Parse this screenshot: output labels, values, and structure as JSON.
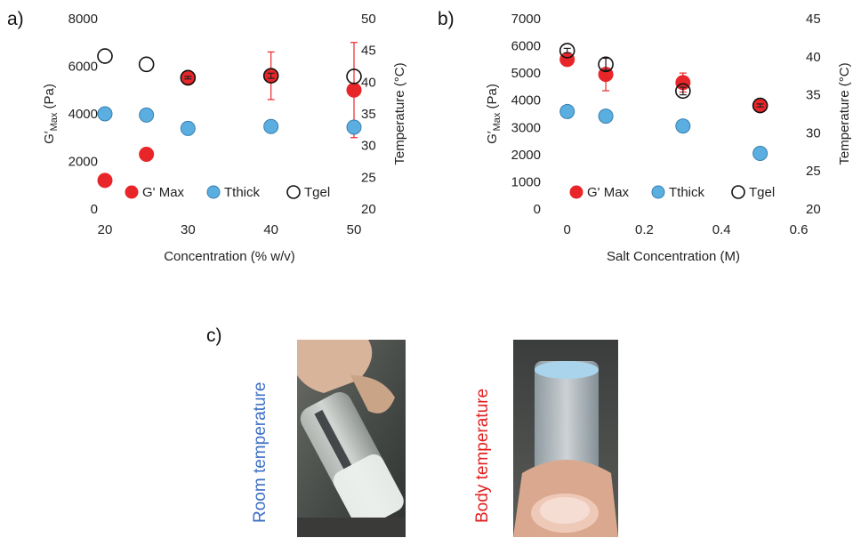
{
  "panels": {
    "a": "a)",
    "b": "b)",
    "c": "c)"
  },
  "chart_data": [
    {
      "type": "scatter",
      "panel": "a)",
      "xlabel": "Concentration  (% w/v)",
      "ylabel_left": "G′",
      "ylabel_left_sub": "Max",
      "ylabel_left_unit": " (Pa)",
      "ylabel_right": "Temperature (°C)",
      "xlim": [
        20,
        50
      ],
      "xticks": [
        "20",
        "30",
        "40",
        "50"
      ],
      "ylim_left": [
        0,
        8000
      ],
      "yticks_left": [
        "0",
        "2000",
        "4000",
        "6000",
        "8000"
      ],
      "ylim_right": [
        20,
        50
      ],
      "yticks_right": [
        "20",
        "25",
        "30",
        "35",
        "40",
        "45",
        "50"
      ],
      "legend": "bottom",
      "series": [
        {
          "name": "G' Max",
          "axis": "left",
          "color": "#e8262a",
          "fill": "#e8262a",
          "stroke": "#e8262a",
          "x": [
            20,
            25,
            30,
            40,
            50
          ],
          "y": [
            1200,
            2300,
            5500,
            5600,
            5000
          ],
          "err": [
            0,
            0,
            100,
            1000,
            2000
          ]
        },
        {
          "name": "Tthick",
          "axis": "right",
          "color": "#5aaee0",
          "fill": "#5aaee0",
          "stroke": "#3a7fb0",
          "x": [
            20,
            25,
            30,
            40,
            50
          ],
          "y": [
            35,
            34.8,
            32.7,
            33,
            32.9
          ],
          "err": [
            0,
            0.3,
            1,
            0.3,
            0
          ]
        },
        {
          "name": "Tgel",
          "axis": "right",
          "color": "#111111",
          "fill": "none",
          "stroke": "#111111",
          "x": [
            20,
            25,
            30,
            40,
            50
          ],
          "y": [
            44.1,
            42.8,
            40.7,
            41,
            40.9
          ],
          "err": [
            0,
            0,
            0.2,
            0.4,
            0
          ]
        }
      ]
    },
    {
      "type": "scatter",
      "panel": "b)",
      "xlabel": "Salt Concentration (M)",
      "ylabel_left": "G′",
      "ylabel_left_sub": "Max",
      "ylabel_left_unit": " (Pa)",
      "ylabel_right": "Temperature (°C)",
      "xlim": [
        -0.05,
        0.6
      ],
      "xticks": [
        "0",
        "0.2",
        "0.4",
        "0.6"
      ],
      "ylim_left": [
        0,
        7000
      ],
      "yticks_left": [
        "0",
        "1000",
        "2000",
        "3000",
        "4000",
        "5000",
        "6000",
        "7000"
      ],
      "ylim_right": [
        20,
        45
      ],
      "yticks_right": [
        "20",
        "25",
        "30",
        "35",
        "40",
        "45"
      ],
      "legend": "bottom",
      "series": [
        {
          "name": "G' Max",
          "axis": "left",
          "color": "#e8262a",
          "fill": "#e8262a",
          "stroke": "#e8262a",
          "x": [
            0,
            0.1,
            0.3,
            0.5
          ],
          "y": [
            5500,
            4950,
            4650,
            3800
          ],
          "err": [
            200,
            600,
            350,
            100
          ]
        },
        {
          "name": "Tthick",
          "axis": "right",
          "color": "#5aaee0",
          "fill": "#5aaee0",
          "stroke": "#3a7fb0",
          "x": [
            0,
            0.1,
            0.3,
            0.5
          ],
          "y": [
            32.8,
            32.2,
            30.9,
            27.3
          ],
          "err": [
            0.3,
            0.3,
            0.3,
            0.3
          ]
        },
        {
          "name": "Tgel",
          "axis": "right",
          "color": "#111111",
          "fill": "none",
          "stroke": "#111111",
          "x": [
            0,
            0.1,
            0.3,
            0.5
          ],
          "y": [
            40.8,
            39.0,
            35.5,
            33.6
          ],
          "err": [
            0.3,
            0.8,
            0.5,
            0.2
          ]
        }
      ]
    }
  ],
  "photos": {
    "left_caption": "Room temperature",
    "left_caption_color": "#3e6fc4",
    "right_caption": "Body temperature",
    "right_caption_color": "#e02020"
  }
}
